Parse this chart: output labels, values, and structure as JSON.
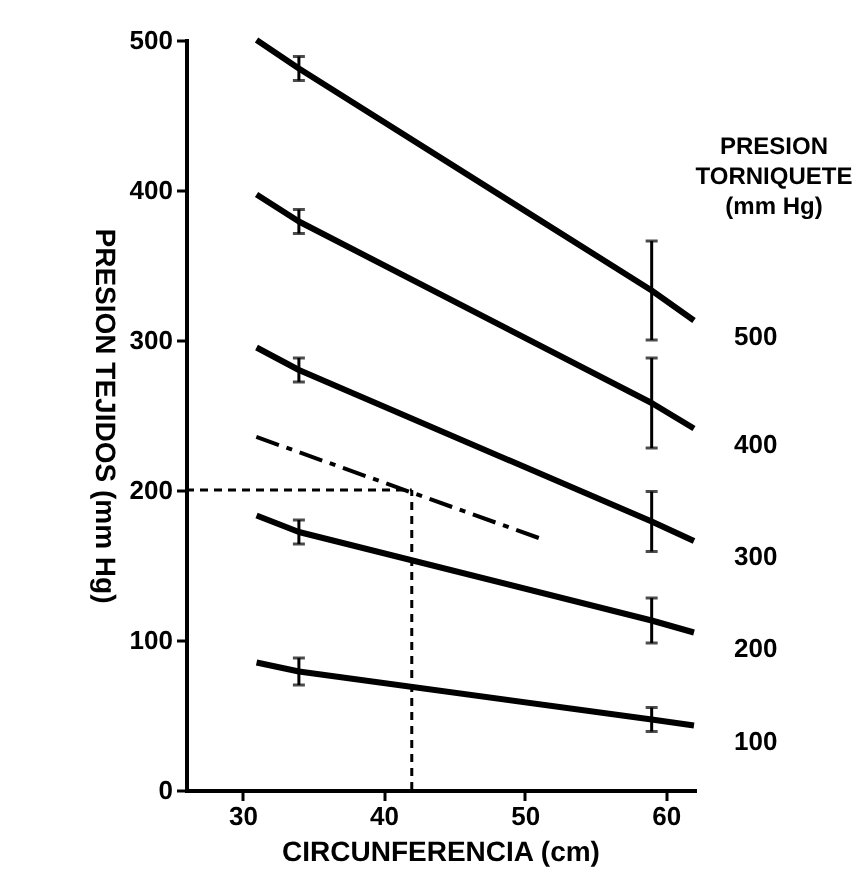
{
  "chart_data": {
    "type": "line",
    "xlabel": "CIRCUNFERENCIA (cm)",
    "ylabel": "PRESION TEJIDOS (mm Hg)",
    "legend_title": "PRESION TORNIQUETE (mm Hg)",
    "x": [
      31,
      34,
      59,
      62
    ],
    "series": [
      {
        "name": "500",
        "color": "#000000",
        "values": [
          500,
          481,
          333,
          313
        ],
        "errors": [
          null,
          8,
          33,
          null
        ]
      },
      {
        "name": "400",
        "color": "#000000",
        "values": [
          397,
          379,
          258,
          241
        ],
        "errors": [
          null,
          8,
          30,
          null
        ]
      },
      {
        "name": "300",
        "color": "#000000",
        "values": [
          295,
          280,
          179,
          166
        ],
        "errors": [
          null,
          8,
          20,
          null
        ]
      },
      {
        "name": "200",
        "color": "#000000",
        "values": [
          183,
          172,
          113,
          105
        ],
        "errors": [
          null,
          8,
          15,
          null
        ]
      },
      {
        "name": "100",
        "color": "#000000",
        "values": [
          85,
          79,
          47,
          43
        ],
        "errors": [
          null,
          9,
          8,
          null
        ]
      },
      {
        "color": "#000000",
        "x": [
          30.5,
          51
        ],
        "values": [
          237,
          168
        ],
        "line_style": "dashed"
      }
    ],
    "ref_lines": [
      {
        "axis": "y",
        "value": 200,
        "color": "#000000",
        "line_style": "dashed"
      },
      {
        "axis": "x",
        "value": 42,
        "color": "#000000",
        "line_style": "dashed"
      }
    ],
    "xlim": [
      26,
      62
    ],
    "xticks": [
      30,
      40,
      50,
      60
    ],
    "ylim": [
      0,
      500
    ],
    "yticks": [
      0,
      100,
      200,
      300,
      400,
      500
    ],
    "grid": false,
    "legend": "right",
    "marker": "none"
  }
}
